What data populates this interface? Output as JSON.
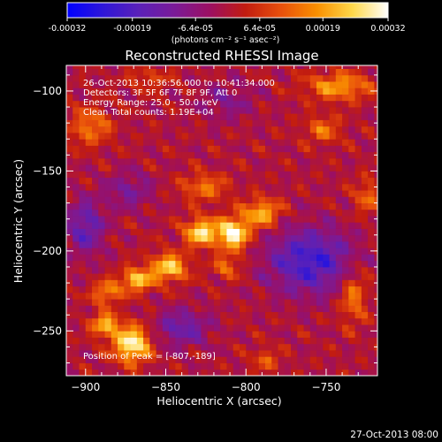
{
  "chart_data": {
    "type": "heatmap",
    "title": "Reconstructed RHESSI Image",
    "xlabel": "Heliocentric X (arcsec)",
    "ylabel": "Heliocentric Y (arcsec)",
    "xlim": [
      -912,
      -718
    ],
    "ylim": [
      -278,
      -84
    ],
    "xticks": [
      -900,
      -850,
      -800,
      -750
    ],
    "yticks": [
      -100,
      -150,
      -200,
      -250
    ],
    "colorbar": {
      "min": -0.00032,
      "max": 0.00032,
      "ticks": [
        -0.00032,
        -0.00019,
        -6.4e-05,
        6.4e-05,
        0.00019,
        0.00032
      ],
      "tick_labels": [
        "-0.00032",
        "-0.00019",
        "-6.4e-05",
        "6.4e-05",
        "0.00019",
        "0.00032"
      ],
      "unit_label": "(photons cm⁻² s⁻¹ asec⁻²)"
    },
    "pixel_size_arcsec": 4,
    "peak": {
      "x": -807,
      "y": -189
    },
    "sources": [
      {
        "x": -808,
        "y": -189,
        "sx": 7,
        "sy": 7,
        "amp": 0.00032
      },
      {
        "x": -828,
        "y": -188,
        "sx": 7,
        "sy": 6,
        "amp": 0.00028
      },
      {
        "x": -790,
        "y": -176,
        "sx": 8,
        "sy": 6,
        "amp": 0.00022
      },
      {
        "x": -848,
        "y": -210,
        "sx": 8,
        "sy": 6,
        "amp": 0.00025
      },
      {
        "x": -868,
        "y": -218,
        "sx": 7,
        "sy": 5,
        "amp": 0.00024
      },
      {
        "x": -887,
        "y": -226,
        "sx": 6,
        "sy": 5,
        "amp": 0.00018
      },
      {
        "x": -871,
        "y": -258,
        "sx": 8,
        "sy": 8,
        "amp": 0.00031
      },
      {
        "x": -888,
        "y": -246,
        "sx": 6,
        "sy": 5,
        "amp": 0.00022
      },
      {
        "x": -812,
        "y": -210,
        "sx": 6,
        "sy": 5,
        "amp": 0.00013
      },
      {
        "x": -826,
        "y": -160,
        "sx": 10,
        "sy": 6,
        "amp": 0.00014
      },
      {
        "x": -742,
        "y": -97,
        "sx": 14,
        "sy": 6,
        "amp": 0.00019
      },
      {
        "x": -752,
        "y": -124,
        "sx": 8,
        "sy": 6,
        "amp": 0.00013
      },
      {
        "x": -897,
        "y": -122,
        "sx": 9,
        "sy": 8,
        "amp": 0.00015
      },
      {
        "x": -724,
        "y": -166,
        "sx": 6,
        "sy": 8,
        "amp": 0.00012
      },
      {
        "x": -733,
        "y": -228,
        "sx": 6,
        "sy": 12,
        "amp": 0.00015
      },
      {
        "x": -788,
        "y": -268,
        "sx": 6,
        "sy": 5,
        "amp": 0.00011
      },
      {
        "x": -860,
        "y": -92,
        "sx": 10,
        "sy": 5,
        "amp": 8e-05
      },
      {
        "x": -760,
        "y": -206,
        "sx": 18,
        "sy": 14,
        "amp": -0.00022
      },
      {
        "x": -840,
        "y": -248,
        "sx": 12,
        "sy": 8,
        "amp": -0.00014
      },
      {
        "x": -900,
        "y": -185,
        "sx": 8,
        "sy": 12,
        "amp": -0.00016
      },
      {
        "x": -873,
        "y": -162,
        "sx": 10,
        "sy": 8,
        "amp": -0.0001
      },
      {
        "x": -812,
        "y": -106,
        "sx": 12,
        "sy": 8,
        "amp": -8e-05
      }
    ]
  },
  "annotations": {
    "line1": "26-Oct-2013 10:36:56.000 to 10:41:34.000",
    "line2": "Detectors: 3F 5F 6F 7F 8F 9F, Att 0",
    "line3": "Energy Range: 25.0 - 50.0 keV",
    "line4": "Clean     Total counts: 1.19E+04",
    "peak_label": "Position of Peak = [-807,-189]"
  },
  "footer": {
    "timestamp": "27-Oct-2013 08:00"
  },
  "colors": {
    "background": "#000000",
    "text": "#ffffff",
    "colormap": [
      "#0000ff",
      "#2e16d8",
      "#5a21b9",
      "#7a1b98",
      "#9c0f62",
      "#c21c10",
      "#e8500c",
      "#f98f00",
      "#ffd84a",
      "#ffffff"
    ]
  }
}
